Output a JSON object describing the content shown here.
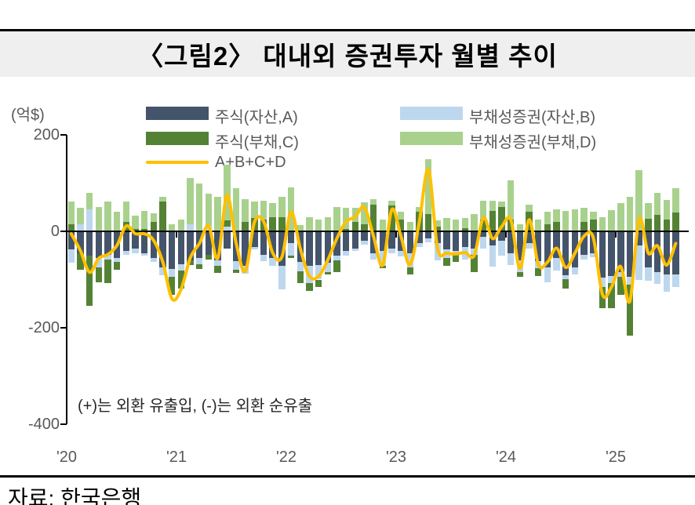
{
  "title": "〈그림2〉 대내외 증권투자 월별 추이",
  "source": "자료: 한국은행",
  "annotation": "(+)는 외환 유출입, (-)는 외환 순유출",
  "y_axis": {
    "unit_label": "(억$)",
    "ticks": [
      "200",
      "0",
      "-200",
      "-400"
    ],
    "tick_values": [
      200,
      0,
      -200,
      -400
    ]
  },
  "x_axis": {
    "labels": [
      "'20",
      "'21",
      "'22",
      "'23",
      "'24",
      "'25"
    ]
  },
  "colors": {
    "stock_asset": "#44546A",
    "debt_asset": "#BDD7EE",
    "stock_liability": "#548235",
    "debt_liability": "#A9D18E",
    "total_line": "#FFC000",
    "title_band": "#f0eff0",
    "axis_text": "#595959"
  },
  "legend": {
    "items": [
      {
        "label": "주식(자산,A)",
        "color_key": "stock_asset"
      },
      {
        "label": "부채성증권(자산,B)",
        "color_key": "debt_asset"
      },
      {
        "label": "주식(부채,C)",
        "color_key": "stock_liability"
      },
      {
        "label": "부채성증권(부채,D)",
        "color_key": "debt_liability"
      },
      {
        "label": "A+B+C+D",
        "color_key": "total_line"
      }
    ]
  },
  "chart_data": {
    "type": "bar",
    "subtype": "stacked-bar-with-line",
    "unit": "억$",
    "ylim": [
      -400,
      200
    ],
    "x_start": "2020-01",
    "x_end": "2025-07",
    "months": 67,
    "year_tick_positions": [
      "2020-01",
      "2021-01",
      "2022-01",
      "2023-01",
      "2024-01",
      "2025-01"
    ],
    "series": [
      {
        "name": "주식(자산,A)",
        "color_key": "stock_asset",
        "values": [
          -37,
          -45,
          -50,
          -55,
          -48,
          -56,
          -40,
          -35,
          -45,
          -55,
          -75,
          -78,
          -69,
          -60,
          -55,
          -48,
          -60,
          -35,
          -62,
          -72,
          -32,
          -48,
          -56,
          -72,
          -24,
          -64,
          -72,
          -70,
          -65,
          -50,
          -40,
          -35,
          -20,
          -45,
          -40,
          -35,
          -40,
          -45,
          -25,
          -15,
          -25,
          -37,
          -40,
          -32,
          -35,
          -12,
          -29,
          -19,
          -45,
          -60,
          -25,
          -61,
          -75,
          -55,
          -91,
          -75,
          -48,
          -45,
          -96,
          -92,
          -85,
          -94,
          -30,
          -75,
          -85,
          -90,
          -90
        ]
      },
      {
        "name": "부채성증권(자산,B)",
        "color_key": "debt_asset",
        "values": [
          -28,
          15,
          45,
          -20,
          -10,
          -8,
          -8,
          -10,
          -5,
          -8,
          -16,
          -16,
          -12,
          15,
          -13,
          11,
          -11,
          10,
          -17,
          -16,
          -6,
          -13,
          -16,
          -48,
          -27,
          -19,
          -35,
          -30,
          -20,
          -10,
          -10,
          -5,
          -8,
          -13,
          -32,
          -10,
          -12,
          -30,
          -8,
          -8,
          -35,
          -19,
          -5,
          -27,
          -13,
          -24,
          -44,
          -32,
          -25,
          -25,
          -10,
          -16,
          -30,
          -26,
          -8,
          -15,
          -11,
          -8,
          -19,
          -15,
          -10,
          -16,
          -71,
          -28,
          -24,
          -35,
          -25
        ]
      },
      {
        "name": "주식(부채,C)",
        "color_key": "stock_liability",
        "values": [
          14,
          -35,
          -105,
          -30,
          -50,
          -16,
          19,
          5,
          5,
          19,
          61,
          -37,
          -37,
          -10,
          -10,
          -11,
          -15,
          13,
          -8,
          19,
          27,
          24,
          29,
          29,
          -5,
          -24,
          -16,
          -15,
          -5,
          -25,
          5,
          19,
          15,
          56,
          -5,
          53,
          25,
          -15,
          40,
          35,
          10,
          -16,
          -19,
          6,
          -37,
          24,
          43,
          50,
          25,
          -10,
          40,
          -15,
          15,
          19,
          -19,
          0,
          19,
          24,
          -45,
          -52,
          -36,
          -106,
          0,
          26,
          34,
          25,
          39
        ]
      },
      {
        "name": "부채성증권(부채,D)",
        "color_key": "debt_liability",
        "values": [
          48,
          33,
          35,
          50,
          61,
          40,
          43,
          27,
          37,
          19,
          10,
          15,
          25,
          95,
          100,
          67,
          72,
          115,
          90,
          48,
          35,
          40,
          29,
          43,
          91,
          13,
          30,
          25,
          30,
          51,
          43,
          29,
          45,
          10,
          24,
          11,
          15,
          20,
          10,
          115,
          12,
          27,
          24,
          21,
          35,
          40,
          21,
          11,
          80,
          15,
          15,
          25,
          25,
          27,
          43,
          45,
          30,
          16,
          29,
          44,
          58,
          71,
          127,
          32,
          45,
          40,
          51
        ]
      },
      {
        "name": "A+B+C+D",
        "type": "line",
        "color_key": "total_line",
        "values": [
          -5,
          -40,
          -85,
          -56,
          -48,
          -29,
          11,
          -5,
          -5,
          -19,
          -64,
          -140,
          -120,
          -55,
          -25,
          11,
          -56,
          75,
          -24,
          -83,
          19,
          21,
          -45,
          -53,
          40,
          -35,
          -93,
          -93,
          -60,
          -15,
          20,
          30,
          50,
          -10,
          -70,
          45,
          -10,
          -69,
          19,
          128,
          -36,
          -45,
          -47,
          -44,
          -50,
          28,
          -15,
          10,
          24,
          -77,
          24,
          -69,
          -64,
          -35,
          -75,
          -45,
          -10,
          -13,
          -131,
          -115,
          -73,
          -145,
          26,
          -45,
          -30,
          -70,
          -25
        ]
      }
    ]
  }
}
